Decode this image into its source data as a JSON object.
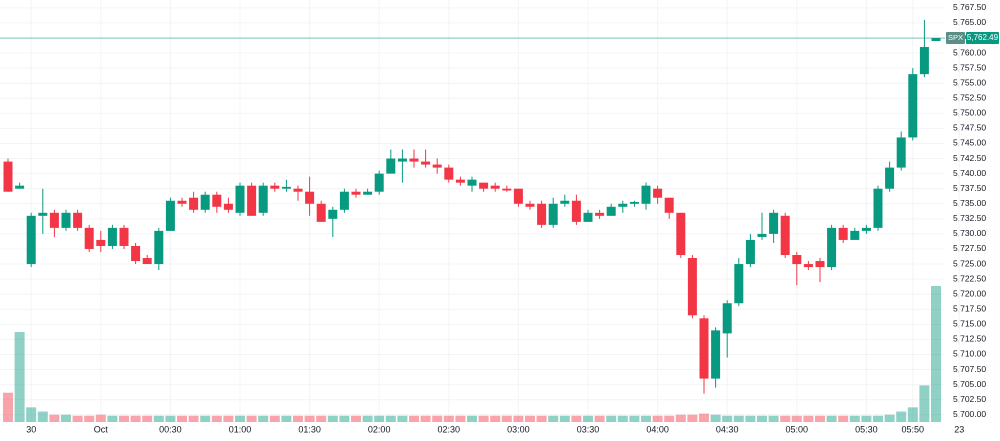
{
  "chart_data": {
    "type": "candlestick",
    "categories": [
      null,
      null,
      "30",
      null,
      null,
      null,
      null,
      null,
      "Oct",
      null,
      null,
      null,
      null,
      null,
      "00:30",
      null,
      null,
      null,
      null,
      null,
      "01:00",
      null,
      null,
      null,
      null,
      null,
      "01:30",
      null,
      null,
      null,
      null,
      null,
      "02:00",
      null,
      null,
      null,
      null,
      null,
      "02:30",
      null,
      null,
      null,
      null,
      null,
      "03:00",
      null,
      null,
      null,
      null,
      null,
      "03:30",
      null,
      null,
      null,
      null,
      null,
      "04:00",
      null,
      null,
      null,
      null,
      null,
      "04:30",
      null,
      null,
      null,
      null,
      null,
      "05:00",
      null,
      null,
      null,
      null,
      null,
      "05:30",
      null,
      null,
      null,
      "05:50",
      null,
      null,
      null,
      "23"
    ],
    "open": [
      5742,
      5737.5,
      5725,
      5733,
      5733.5,
      5731,
      5733.5,
      5731,
      5729,
      5728,
      5731,
      5728,
      5726,
      5725,
      5730.5,
      5735.5,
      5736,
      5734,
      5736.5,
      5735,
      5733.5,
      5738,
      5733.5,
      5738,
      5737.5,
      5737.5,
      5737,
      5735,
      5732.5,
      5734,
      5737,
      5736.5,
      5737,
      5740,
      5742,
      5742.5,
      5742,
      5741.5,
      5741,
      5739,
      5738,
      5738.5,
      5738,
      5737.5,
      5737.5,
      5735,
      5735,
      5731.5,
      5735,
      5735.5,
      5732,
      5733.5,
      5733,
      5734.5,
      5735,
      5735,
      5737.5,
      5736,
      5733.5,
      5726,
      5716,
      5706,
      5713.5,
      5718.5,
      5725,
      5729.5,
      5730,
      5733,
      5726.5,
      5725,
      5725.5,
      5724.5,
      5731,
      5729,
      5730.5,
      5731,
      5737.5,
      5741,
      5746,
      5756.5,
      5762,
      null,
      null
    ],
    "high": [
      5742.5,
      5738.5,
      5733.5,
      5737.5,
      5734,
      5734,
      5734,
      5731.5,
      5730.5,
      5731.5,
      5731.5,
      5728.5,
      5726.5,
      5731,
      5736,
      5736,
      5737,
      5737,
      5737,
      5736,
      5738.5,
      5738.5,
      5738.5,
      5738.5,
      5739,
      5738,
      5739.5,
      5735.5,
      5734.5,
      5737.5,
      5737.5,
      5737.5,
      5740.5,
      5744,
      5744,
      5744,
      5744,
      5742.5,
      5741.5,
      5739.5,
      5739.5,
      5738.5,
      5738.5,
      5738,
      5737.5,
      5735.5,
      5735.5,
      5736,
      5736.5,
      5736.5,
      5734,
      5734,
      5735,
      5735.5,
      5735.5,
      5738.5,
      5738,
      5736,
      5733.5,
      5726.5,
      5716.5,
      5714.5,
      5719,
      5726,
      5730,
      5733.5,
      5734,
      5733.5,
      5727,
      5725.5,
      5726,
      5731.5,
      5731.5,
      5731,
      5731.5,
      5738,
      5742,
      5747,
      5757.5,
      5765.5,
      5762.5,
      null,
      null
    ],
    "low": [
      5737,
      5737.5,
      5724.5,
      5730,
      5729.5,
      5730.5,
      5730.5,
      5727,
      5727,
      5727.5,
      5727.5,
      5725,
      5725,
      5724,
      5730.5,
      5734.5,
      5733.5,
      5733.5,
      5733.5,
      5733.5,
      5733,
      5733,
      5733,
      5737,
      5737,
      5735.5,
      5733,
      5732,
      5729.5,
      5733.5,
      5736,
      5736.5,
      5736.5,
      5740,
      5738.5,
      5741,
      5741,
      5740,
      5738.5,
      5738,
      5737,
      5737,
      5737,
      5737,
      5734.5,
      5734,
      5731,
      5731,
      5734.5,
      5731.5,
      5732,
      5732.5,
      5733,
      5733.5,
      5734.5,
      5734,
      5735,
      5732.5,
      5726,
      5716,
      5703.5,
      5704.5,
      5709.5,
      5718,
      5724.5,
      5729,
      5728.5,
      5726,
      5721.5,
      5724,
      5722,
      5724,
      5728.5,
      5729,
      5730,
      5730.5,
      5737,
      5740.5,
      5745.5,
      5756,
      5762,
      null,
      null
    ],
    "close": [
      5737,
      5738,
      5733,
      5733.5,
      5731,
      5733.5,
      5731,
      5727.5,
      5728,
      5731,
      5728,
      5725.5,
      5725,
      5730.5,
      5735.5,
      5735,
      5734,
      5736.5,
      5734.5,
      5734,
      5738,
      5733,
      5738,
      5737.5,
      5737.8,
      5737,
      5735,
      5732,
      5734,
      5737,
      5736.5,
      5737,
      5740,
      5742.5,
      5742.5,
      5742,
      5741.5,
      5741,
      5739,
      5738.5,
      5739,
      5737.5,
      5737.5,
      5737.2,
      5735,
      5734.5,
      5731.5,
      5735,
      5735.5,
      5732,
      5733.5,
      5733,
      5734.5,
      5735,
      5735.3,
      5738,
      5736,
      5733.5,
      5726.5,
      5716.5,
      5706,
      5714,
      5718.5,
      5725,
      5729,
      5730,
      5733.5,
      5726.5,
      5725,
      5724.5,
      5724.5,
      5731,
      5729,
      5730.5,
      5731,
      5737.5,
      5741,
      5746,
      5756.5,
      5761,
      5762.49,
      null,
      null
    ],
    "volume": [
      28,
      86,
      14,
      10,
      7,
      7,
      6,
      6,
      7,
      6,
      6,
      6,
      6,
      6,
      6,
      6,
      6,
      6,
      6,
      6,
      6,
      6,
      6,
      6,
      6,
      6,
      6,
      6,
      6,
      6,
      6,
      6,
      6,
      6,
      6,
      6,
      6,
      6,
      6,
      6,
      6,
      6,
      6,
      6,
      6,
      6,
      6,
      6,
      6,
      6,
      6,
      6,
      6,
      6,
      6,
      6,
      6,
      6,
      7,
      7,
      8,
      7,
      6,
      6,
      6,
      6,
      6,
      6,
      6,
      6,
      6,
      6,
      6,
      6,
      6,
      6,
      7,
      10,
      14,
      35,
      130,
      null,
      null
    ],
    "up_color": "#089981",
    "down_color": "#f23645",
    "ylim": [
      5698.8,
      5768.8
    ],
    "yticks": [
      {
        "value": 5700,
        "label": "5,700.00"
      },
      {
        "value": 5702.5,
        "label": "5,702.50"
      },
      {
        "value": 5705,
        "label": "5,705.00"
      },
      {
        "value": 5707.5,
        "label": "5,707.50"
      },
      {
        "value": 5710,
        "label": "5,710.00"
      },
      {
        "value": 5712.5,
        "label": "5,712.50"
      },
      {
        "value": 5715,
        "label": "5,715.00"
      },
      {
        "value": 5717.5,
        "label": "5,717.50"
      },
      {
        "value": 5720,
        "label": "5,720.00"
      },
      {
        "value": 5722.5,
        "label": "5,722.50"
      },
      {
        "value": 5725,
        "label": "5,725.00"
      },
      {
        "value": 5727.5,
        "label": "5,727.50"
      },
      {
        "value": 5730,
        "label": "5,730.00"
      },
      {
        "value": 5732.5,
        "label": "5,732.50"
      },
      {
        "value": 5735,
        "label": "5,735.00"
      },
      {
        "value": 5737.5,
        "label": "5,737.50"
      },
      {
        "value": 5740,
        "label": "5,740.00"
      },
      {
        "value": 5742.5,
        "label": "5,742.50"
      },
      {
        "value": 5745,
        "label": "5,745.00"
      },
      {
        "value": 5747.5,
        "label": "5,747.50"
      },
      {
        "value": 5750,
        "label": "5,750.00"
      },
      {
        "value": 5752.5,
        "label": "5,752.50"
      },
      {
        "value": 5755,
        "label": "5,755.00"
      },
      {
        "value": 5757.5,
        "label": "5,757.50"
      },
      {
        "value": 5760,
        "label": "5,760.00"
      },
      {
        "value": 5762.5,
        "label": "5,762.50"
      },
      {
        "value": 5765,
        "label": "5,765.00"
      },
      {
        "value": 5767.5,
        "label": "5,767.50"
      }
    ],
    "grid": true,
    "last_price": {
      "symbol": "SPX",
      "value": 5762.49,
      "label": "5,762.49"
    }
  }
}
